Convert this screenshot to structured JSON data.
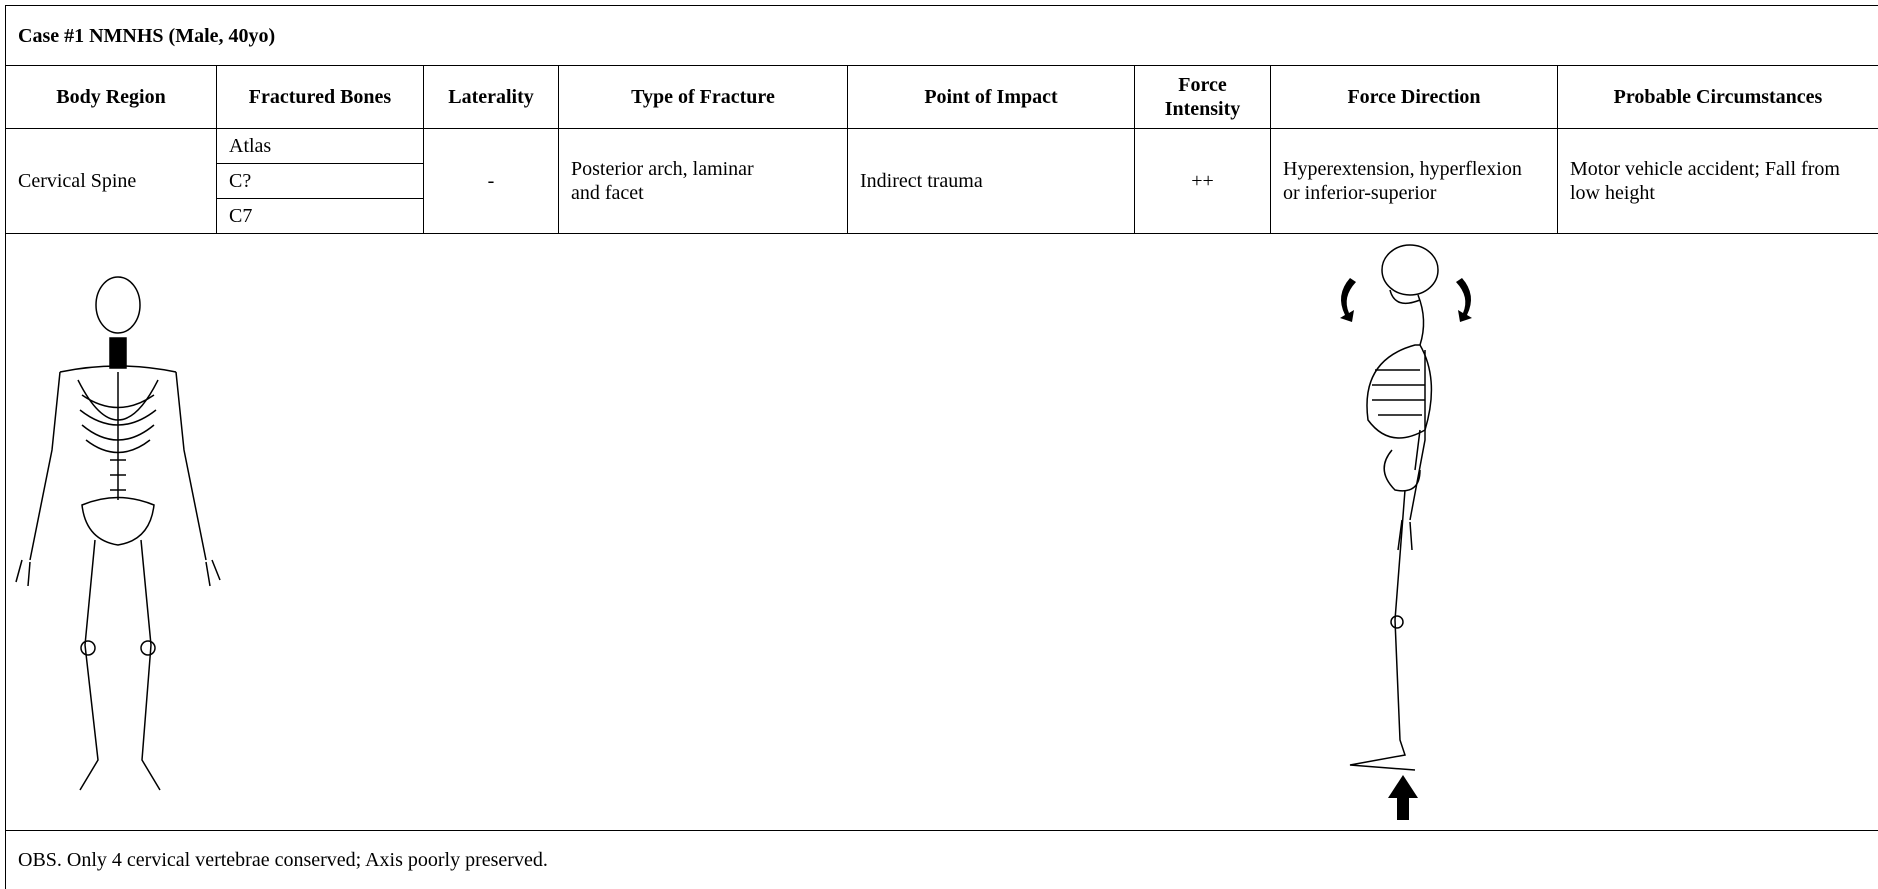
{
  "title": "Case #1 NMNHS (Male, 40yo)",
  "table": {
    "headers": [
      "Body Region",
      "Fractured Bones",
      "Laterality",
      "Type of Fracture",
      "Point of Impact",
      "Force Intensity",
      "Force Direction",
      "Probable Circumstances"
    ],
    "row": {
      "body_region": "Cervical Spine",
      "fractured_bones": [
        "Atlas",
        "C?",
        "C7"
      ],
      "laterality": "-",
      "type_of_fracture": "Posterior arch, laminar and facet",
      "point_of_impact": "Indirect trauma",
      "force_intensity": "++",
      "force_direction": "Hyperextension, hyperflexion or inferior-superior",
      "probable_circumstances": "Motor vehicle accident; Fall from low height"
    }
  },
  "obs": "OBS. Only 4 cervical vertebrae conserved; Axis poorly preserved."
}
